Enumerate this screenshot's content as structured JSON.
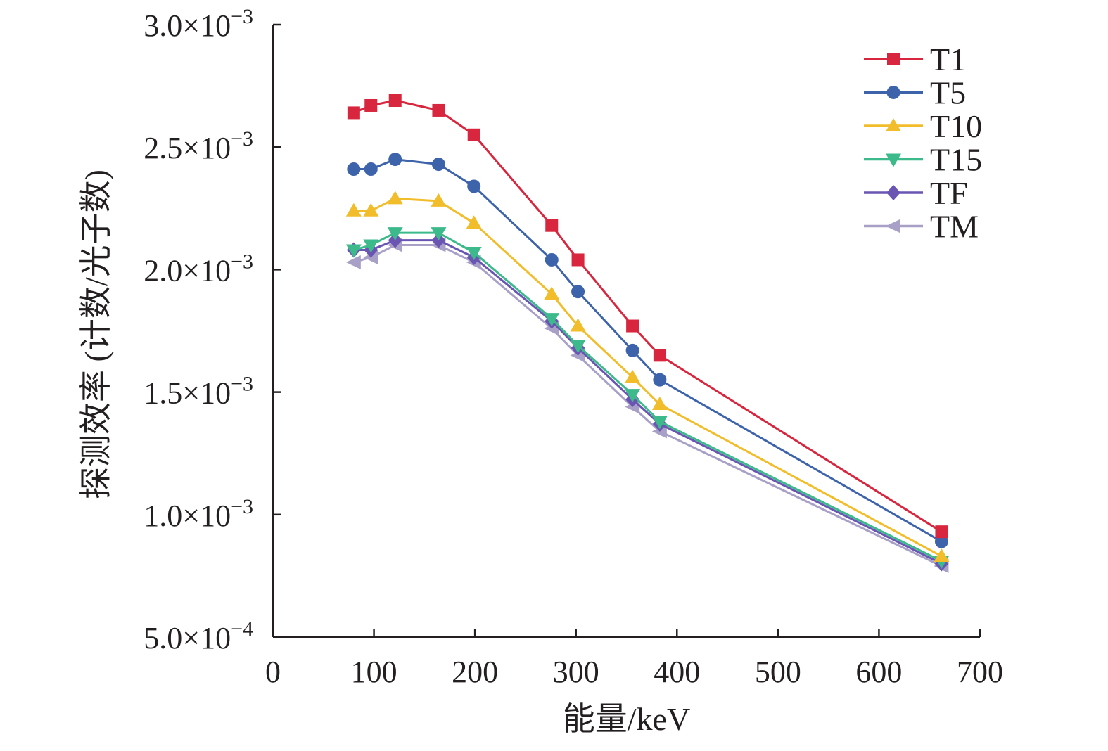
{
  "chart_data": {
    "type": "line",
    "title": "",
    "xlabel": "能量/keV",
    "ylabel": "探测效率 (计数/光子数)",
    "xlim": [
      0,
      700
    ],
    "ylim": [
      0.0005,
      0.003
    ],
    "grid": false,
    "legend_position": "top-right",
    "xticks": [
      {
        "value": 0,
        "label": "0"
      },
      {
        "value": 100,
        "label": "100"
      },
      {
        "value": 200,
        "label": "200"
      },
      {
        "value": 300,
        "label": "300"
      },
      {
        "value": 400,
        "label": "400"
      },
      {
        "value": 500,
        "label": "500"
      },
      {
        "value": 600,
        "label": "600"
      },
      {
        "value": 700,
        "label": "700"
      }
    ],
    "yticks": [
      {
        "value": 0.0005,
        "mantissa": "5.0",
        "exponent": "−4"
      },
      {
        "value": 0.001,
        "mantissa": "1.0",
        "exponent": "−3"
      },
      {
        "value": 0.0015,
        "mantissa": "1.5",
        "exponent": "−3"
      },
      {
        "value": 0.002,
        "mantissa": "2.0",
        "exponent": "−3"
      },
      {
        "value": 0.0025,
        "mantissa": "2.5",
        "exponent": "−3"
      },
      {
        "value": 0.003,
        "mantissa": "3.0",
        "exponent": "−3"
      }
    ],
    "x": [
      80,
      97,
      121,
      164,
      199,
      276,
      302,
      356,
      383,
      662
    ],
    "series": [
      {
        "name": "T1",
        "color": "#d7263d",
        "marker": "square",
        "values": [
          0.00264,
          0.00267,
          0.00269,
          0.00265,
          0.00255,
          0.00218,
          0.00204,
          0.00177,
          0.00165,
          0.00093
        ]
      },
      {
        "name": "T5",
        "color": "#3d64aa",
        "marker": "circle",
        "values": [
          0.00241,
          0.00241,
          0.00245,
          0.00243,
          0.00234,
          0.00204,
          0.00191,
          0.00167,
          0.00155,
          0.00089
        ]
      },
      {
        "name": "T10",
        "color": "#f2bd2b",
        "marker": "triangle-up",
        "values": [
          0.00224,
          0.00224,
          0.00229,
          0.00228,
          0.00219,
          0.0019,
          0.00177,
          0.00156,
          0.00145,
          0.00083
        ]
      },
      {
        "name": "T15",
        "color": "#3dba8c",
        "marker": "triangle-down",
        "values": [
          0.00208,
          0.0021,
          0.00215,
          0.00215,
          0.00207,
          0.0018,
          0.00169,
          0.00149,
          0.00138,
          0.00081
        ]
      },
      {
        "name": "TF",
        "color": "#6a55b3",
        "marker": "diamond",
        "values": [
          0.00208,
          0.00208,
          0.00212,
          0.00212,
          0.00205,
          0.00179,
          0.00168,
          0.00147,
          0.00137,
          0.0008
        ]
      },
      {
        "name": "TM",
        "color": "#a9a0c8",
        "marker": "triangle-left",
        "values": [
          0.00203,
          0.00205,
          0.0021,
          0.0021,
          0.00203,
          0.00176,
          0.00165,
          0.00144,
          0.00134,
          0.00079
        ]
      }
    ]
  }
}
